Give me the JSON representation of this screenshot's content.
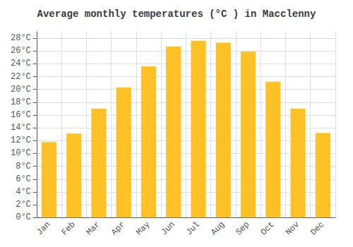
{
  "chart_data": {
    "type": "bar",
    "title": "Average monthly temperatures (°C ) in Macclenny",
    "categories": [
      "Jan",
      "Feb",
      "Mar",
      "Apr",
      "May",
      "Jun",
      "Jul",
      "Aug",
      "Sep",
      "Oct",
      "Nov",
      "Dec"
    ],
    "values": [
      11.8,
      13.1,
      17.0,
      20.3,
      23.6,
      26.7,
      27.6,
      27.3,
      25.9,
      21.2,
      17.0,
      13.2
    ],
    "color": "#FFC125",
    "ylim": [
      0,
      29
    ],
    "yticks": [
      {
        "value": 0,
        "label": "0°C"
      },
      {
        "value": 2,
        "label": "2°C"
      },
      {
        "value": 4,
        "label": "4°C"
      },
      {
        "value": 6,
        "label": "6°C"
      },
      {
        "value": 8,
        "label": "8°C"
      },
      {
        "value": 10,
        "label": "10°C"
      },
      {
        "value": 12,
        "label": "12°C"
      },
      {
        "value": 14,
        "label": "14°C"
      },
      {
        "value": 16,
        "label": "16°C"
      },
      {
        "value": 18,
        "label": "18°C"
      },
      {
        "value": 20,
        "label": "20°C"
      },
      {
        "value": 22,
        "label": "22°C"
      },
      {
        "value": 24,
        "label": "24°C"
      },
      {
        "value": 26,
        "label": "26°C"
      },
      {
        "value": 28,
        "label": "28°C"
      }
    ],
    "grid": true
  }
}
